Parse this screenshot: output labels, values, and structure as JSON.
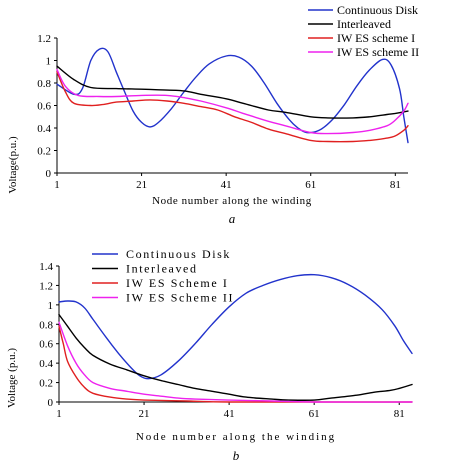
{
  "chart_data": [
    {
      "type": "line",
      "panel_label": "a",
      "xlabel": "Node number along the winding",
      "ylabel": "Voltage(p.u.)",
      "xlim": [
        1,
        84
      ],
      "ylim": [
        0,
        1.2
      ],
      "x_ticks": [
        1,
        21,
        41,
        61,
        81
      ],
      "y_ticks": [
        0,
        0.2,
        0.4,
        0.6,
        0.8,
        1,
        1.2
      ],
      "y_tick_labels": [
        "0",
        "0.2",
        "0.4",
        "0.6",
        "0.8",
        "1",
        "1.2"
      ],
      "legend_position": "top-right",
      "series": [
        {
          "name": "Continuous Disk",
          "color": "#2233cc",
          "points": [
            [
              1,
              0.79
            ],
            [
              5,
              0.7
            ],
            [
              7,
              0.75
            ],
            [
              9,
              1.0
            ],
            [
              11,
              1.1
            ],
            [
              13,
              1.08
            ],
            [
              15,
              0.9
            ],
            [
              17,
              0.72
            ],
            [
              19,
              0.55
            ],
            [
              21,
              0.45
            ],
            [
              23,
              0.41
            ],
            [
              25,
              0.45
            ],
            [
              28,
              0.57
            ],
            [
              31,
              0.72
            ],
            [
              34,
              0.86
            ],
            [
              37,
              0.97
            ],
            [
              41,
              1.04
            ],
            [
              44,
              1.03
            ],
            [
              47,
              0.95
            ],
            [
              50,
              0.8
            ],
            [
              53,
              0.62
            ],
            [
              56,
              0.47
            ],
            [
              58,
              0.4
            ],
            [
              60,
              0.36
            ],
            [
              63,
              0.38
            ],
            [
              66,
              0.47
            ],
            [
              69,
              0.61
            ],
            [
              72,
              0.78
            ],
            [
              75,
              0.92
            ],
            [
              78,
              1.01
            ],
            [
              80,
              0.96
            ],
            [
              82,
              0.75
            ],
            [
              83,
              0.5
            ],
            [
              84,
              0.27
            ]
          ]
        },
        {
          "name": "Interleaved",
          "color": "#000000",
          "points": [
            [
              1,
              0.95
            ],
            [
              5,
              0.83
            ],
            [
              9,
              0.76
            ],
            [
              15,
              0.75
            ],
            [
              21,
              0.745
            ],
            [
              25,
              0.74
            ],
            [
              31,
              0.73
            ],
            [
              35,
              0.7
            ],
            [
              41,
              0.66
            ],
            [
              45,
              0.62
            ],
            [
              51,
              0.56
            ],
            [
              55,
              0.54
            ],
            [
              61,
              0.5
            ],
            [
              65,
              0.49
            ],
            [
              71,
              0.49
            ],
            [
              75,
              0.5
            ],
            [
              79,
              0.52
            ],
            [
              81,
              0.53
            ],
            [
              84,
              0.55
            ]
          ]
        },
        {
          "name": "IW ES scheme I",
          "color": "#e02020",
          "points": [
            [
              1,
              0.9
            ],
            [
              3,
              0.72
            ],
            [
              5,
              0.62
            ],
            [
              9,
              0.6
            ],
            [
              12,
              0.61
            ],
            [
              15,
              0.63
            ],
            [
              19,
              0.64
            ],
            [
              23,
              0.65
            ],
            [
              27,
              0.64
            ],
            [
              31,
              0.62
            ],
            [
              35,
              0.59
            ],
            [
              39,
              0.56
            ],
            [
              43,
              0.5
            ],
            [
              47,
              0.45
            ],
            [
              51,
              0.39
            ],
            [
              55,
              0.35
            ],
            [
              61,
              0.29
            ],
            [
              65,
              0.28
            ],
            [
              71,
              0.28
            ],
            [
              75,
              0.29
            ],
            [
              79,
              0.31
            ],
            [
              81,
              0.33
            ],
            [
              83,
              0.38
            ],
            [
              84,
              0.42
            ]
          ]
        },
        {
          "name": "IW ES scheme II",
          "color": "#ee22ee",
          "points": [
            [
              1,
              0.92
            ],
            [
              3,
              0.77
            ],
            [
              6,
              0.69
            ],
            [
              11,
              0.68
            ],
            [
              15,
              0.68
            ],
            [
              21,
              0.69
            ],
            [
              27,
              0.69
            ],
            [
              31,
              0.67
            ],
            [
              35,
              0.64
            ],
            [
              41,
              0.58
            ],
            [
              45,
              0.53
            ],
            [
              51,
              0.46
            ],
            [
              55,
              0.42
            ],
            [
              61,
              0.36
            ],
            [
              65,
              0.35
            ],
            [
              71,
              0.36
            ],
            [
              75,
              0.38
            ],
            [
              79,
              0.42
            ],
            [
              81,
              0.47
            ],
            [
              83,
              0.55
            ],
            [
              84,
              0.62
            ]
          ]
        }
      ]
    },
    {
      "type": "line",
      "panel_label": "b",
      "xlabel": "Node number along the winding",
      "ylabel": "Voltage (p.u.)",
      "xlim": [
        1,
        84
      ],
      "ylim": [
        0,
        1.4
      ],
      "x_ticks": [
        1,
        21,
        41,
        61,
        81
      ],
      "y_ticks": [
        0,
        0.2,
        0.4,
        0.6,
        0.8,
        1,
        1.2,
        1.4
      ],
      "y_tick_labels": [
        "0",
        "0.2",
        "0.4",
        "0.6",
        "0.8",
        "1",
        "1.2",
        "1.4"
      ],
      "legend_position": "top-left",
      "series": [
        {
          "name": "Continuous Disk",
          "color": "#2233cc",
          "points": [
            [
              1,
              1.03
            ],
            [
              3,
              1.04
            ],
            [
              5,
              1.03
            ],
            [
              7,
              0.97
            ],
            [
              9,
              0.85
            ],
            [
              12,
              0.67
            ],
            [
              15,
              0.5
            ],
            [
              18,
              0.35
            ],
            [
              20,
              0.27
            ],
            [
              22,
              0.24
            ],
            [
              25,
              0.28
            ],
            [
              29,
              0.42
            ],
            [
              33,
              0.6
            ],
            [
              37,
              0.8
            ],
            [
              41,
              0.98
            ],
            [
              45,
              1.12
            ],
            [
              49,
              1.2
            ],
            [
              53,
              1.26
            ],
            [
              57,
              1.3
            ],
            [
              61,
              1.31
            ],
            [
              65,
              1.28
            ],
            [
              69,
              1.21
            ],
            [
              73,
              1.1
            ],
            [
              77,
              0.95
            ],
            [
              80,
              0.78
            ],
            [
              82,
              0.63
            ],
            [
              84,
              0.5
            ]
          ]
        },
        {
          "name": "Interleaved",
          "color": "#000000",
          "points": [
            [
              1,
              0.9
            ],
            [
              3,
              0.78
            ],
            [
              5,
              0.66
            ],
            [
              7,
              0.56
            ],
            [
              9,
              0.48
            ],
            [
              13,
              0.39
            ],
            [
              17,
              0.33
            ],
            [
              21,
              0.27
            ],
            [
              25,
              0.22
            ],
            [
              29,
              0.18
            ],
            [
              33,
              0.14
            ],
            [
              37,
              0.11
            ],
            [
              41,
              0.08
            ],
            [
              45,
              0.05
            ],
            [
              51,
              0.03
            ],
            [
              55,
              0.02
            ],
            [
              61,
              0.02
            ],
            [
              65,
              0.04
            ],
            [
              71,
              0.07
            ],
            [
              75,
              0.1
            ],
            [
              79,
              0.12
            ],
            [
              81,
              0.14
            ],
            [
              84,
              0.18
            ]
          ]
        },
        {
          "name": "IW ES Scheme I",
          "color": "#e02020",
          "points": [
            [
              1,
              0.78
            ],
            [
              2,
              0.6
            ],
            [
              3,
              0.42
            ],
            [
              5,
              0.26
            ],
            [
              7,
              0.15
            ],
            [
              9,
              0.09
            ],
            [
              13,
              0.05
            ],
            [
              17,
              0.03
            ],
            [
              21,
              0.02
            ],
            [
              31,
              0.01
            ],
            [
              41,
              0.0
            ],
            [
              61,
              0.0
            ],
            [
              84,
              0.0
            ]
          ]
        },
        {
          "name": "IW ES Scheme II",
          "color": "#ee22ee",
          "points": [
            [
              1,
              0.82
            ],
            [
              3,
              0.58
            ],
            [
              5,
              0.4
            ],
            [
              7,
              0.28
            ],
            [
              9,
              0.2
            ],
            [
              13,
              0.14
            ],
            [
              17,
              0.11
            ],
            [
              21,
              0.08
            ],
            [
              25,
              0.06
            ],
            [
              29,
              0.04
            ],
            [
              33,
              0.03
            ],
            [
              41,
              0.02
            ],
            [
              51,
              0.01
            ],
            [
              61,
              0.0
            ],
            [
              84,
              0.0
            ]
          ]
        }
      ]
    }
  ]
}
